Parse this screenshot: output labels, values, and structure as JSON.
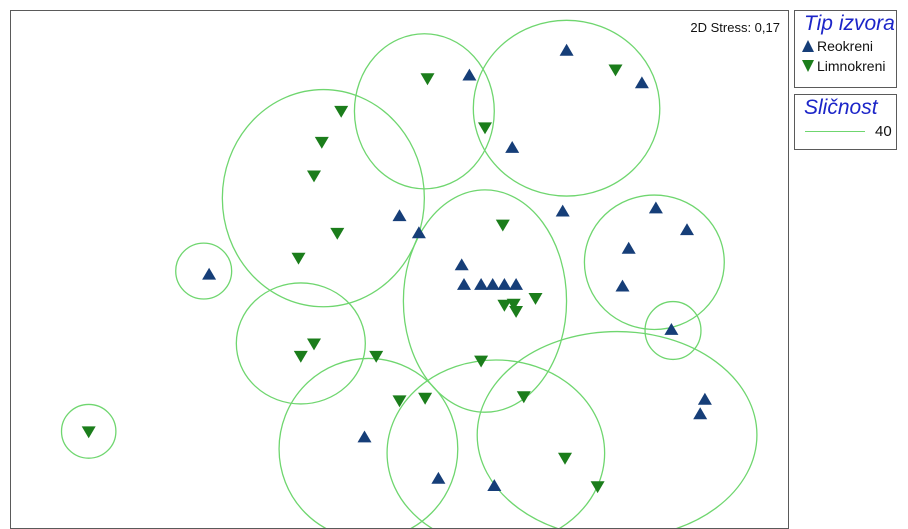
{
  "chart_data": {
    "type": "scatter",
    "title": "",
    "stress_label": "2D Stress: 0,17",
    "xlim": [
      0,
      100
    ],
    "ylim": [
      0,
      100
    ],
    "grid": false,
    "legend_position": "right",
    "colors": {
      "Reokreni": "#163e78",
      "Limnokreni": "#1b7d1b",
      "cluster": "#6fd66f"
    },
    "series": [
      {
        "name": "Reokreni",
        "marker": "triangle-up",
        "points": [
          [
            59.0,
            87.5
          ],
          [
            71.5,
            92.3
          ],
          [
            81.2,
            86.0
          ],
          [
            64.5,
            73.5
          ],
          [
            50.0,
            60.3
          ],
          [
            71.0,
            61.2
          ],
          [
            83.0,
            61.8
          ],
          [
            87.0,
            57.6
          ],
          [
            79.5,
            54.0
          ],
          [
            78.7,
            46.7
          ],
          [
            58.0,
            50.8
          ],
          [
            58.3,
            47.0
          ],
          [
            60.5,
            47.0
          ],
          [
            62.0,
            47.0
          ],
          [
            63.5,
            47.0
          ],
          [
            65.0,
            47.0
          ],
          [
            25.5,
            49.0
          ],
          [
            85.0,
            38.3
          ],
          [
            89.3,
            24.8
          ],
          [
            88.7,
            22.0
          ],
          [
            45.5,
            17.5
          ],
          [
            55.0,
            9.5
          ],
          [
            62.2,
            8.1
          ],
          [
            52.5,
            57.0
          ]
        ]
      },
      {
        "name": "Limnokreni",
        "marker": "triangle-down",
        "points": [
          [
            53.6,
            87.0
          ],
          [
            77.8,
            88.7
          ],
          [
            61.0,
            77.5
          ],
          [
            42.5,
            80.7
          ],
          [
            40.0,
            74.7
          ],
          [
            39.0,
            68.2
          ],
          [
            42.0,
            57.1
          ],
          [
            37.0,
            52.3
          ],
          [
            63.3,
            58.7
          ],
          [
            63.5,
            43.2
          ],
          [
            64.7,
            43.4
          ],
          [
            65.0,
            42.0
          ],
          [
            67.5,
            44.5
          ],
          [
            39.0,
            35.7
          ],
          [
            37.3,
            33.3
          ],
          [
            47.0,
            33.3
          ],
          [
            60.5,
            32.4
          ],
          [
            50.0,
            24.7
          ],
          [
            53.3,
            25.2
          ],
          [
            66.0,
            25.5
          ],
          [
            71.3,
            13.6
          ],
          [
            75.5,
            8.1
          ],
          [
            10.0,
            18.7
          ]
        ]
      }
    ],
    "clusters": [
      {
        "cx": 53.2,
        "cy": 80.6,
        "rx": 9,
        "ry": 15
      },
      {
        "cx": 71.5,
        "cy": 81.2,
        "rx": 12,
        "ry": 17
      },
      {
        "cx": 40.2,
        "cy": 63.8,
        "rx": 13,
        "ry": 21
      },
      {
        "cx": 24.8,
        "cy": 49.7,
        "rx": 3.6,
        "ry": 5.4
      },
      {
        "cx": 82.8,
        "cy": 51.4,
        "rx": 9,
        "ry": 13
      },
      {
        "cx": 61.0,
        "cy": 43.9,
        "rx": 10.5,
        "ry": 21.5
      },
      {
        "cx": 37.3,
        "cy": 35.7,
        "rx": 8.3,
        "ry": 11.7
      },
      {
        "cx": 85.2,
        "cy": 38.2,
        "rx": 3.6,
        "ry": 5.6
      },
      {
        "cx": 46.0,
        "cy": 15.3,
        "rx": 11.5,
        "ry": 17.5
      },
      {
        "cx": 62.4,
        "cy": 14.5,
        "rx": 14,
        "ry": 18
      },
      {
        "cx": 78.0,
        "cy": 18.0,
        "rx": 18,
        "ry": 20
      },
      {
        "cx": 10.0,
        "cy": 18.7,
        "rx": 3.5,
        "ry": 5.2
      }
    ]
  },
  "legend_type": {
    "title": "Tip izvora",
    "items": [
      {
        "label": "Reokreni",
        "marker": "triangle-up",
        "color": "#163e78"
      },
      {
        "label": "Limnokreni",
        "marker": "triangle-down",
        "color": "#1b7d1b"
      }
    ]
  },
  "legend_similarity": {
    "title": "Sličnost",
    "value": "40",
    "color": "#6fd66f"
  }
}
